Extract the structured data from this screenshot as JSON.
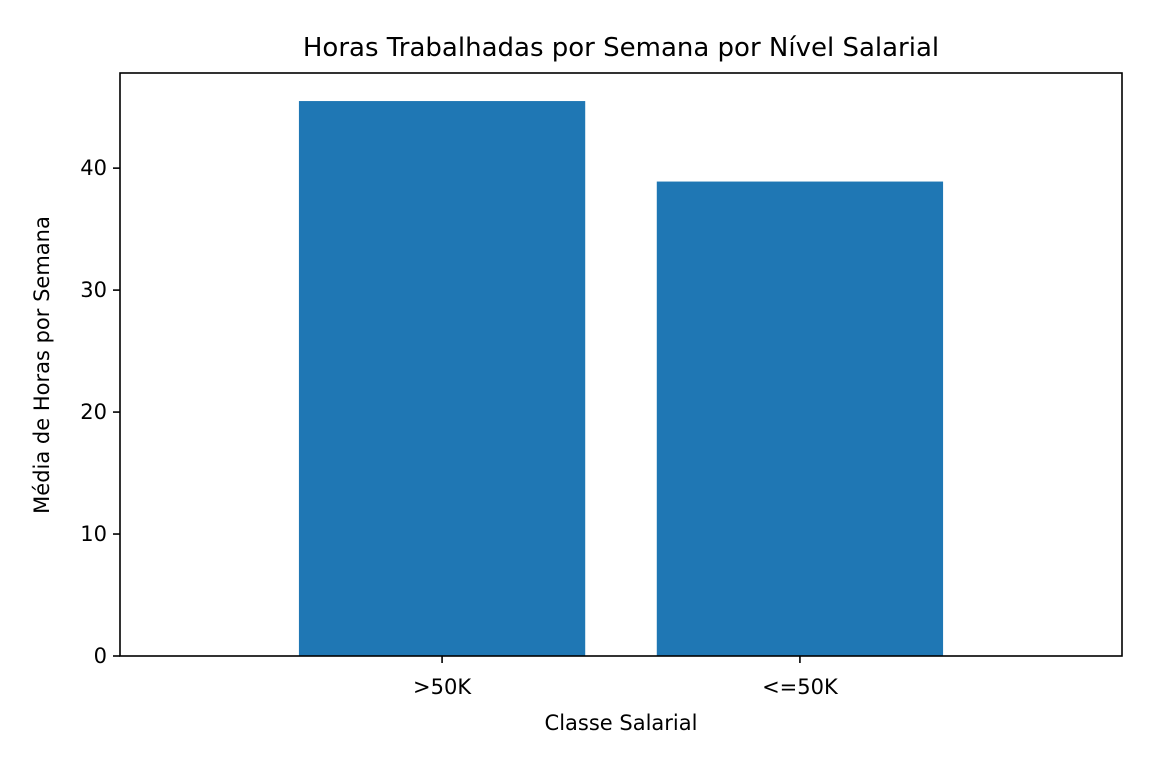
{
  "chart_data": {
    "type": "bar",
    "title": "Horas Trabalhadas por Semana por Nível Salarial",
    "xlabel": "Classe Salarial",
    "ylabel": "Média de Horas por Semana",
    "categories": [
      ">50K",
      "<=50K"
    ],
    "values": [
      45.5,
      38.9
    ],
    "ylim": [
      0,
      47.8
    ],
    "yticks": [
      0,
      10,
      20,
      30,
      40
    ],
    "grid": false,
    "bar_color": "#1f77b4"
  }
}
